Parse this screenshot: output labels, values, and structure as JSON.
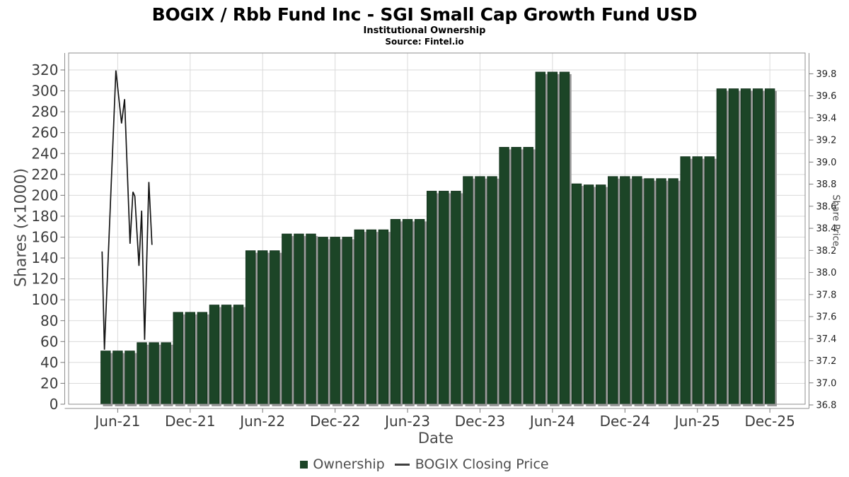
{
  "chart_data": {
    "type": "bar+line",
    "title": "BOGIX / Rbb Fund Inc - SGI Small Cap Growth Fund USD",
    "subtitle": "Institutional Ownership",
    "source": "Source: Fintel.io",
    "background": "#ffffff",
    "grid": true,
    "x_axis": {
      "label": "Date",
      "tick_labels": [
        "Jun-21",
        "Dec-21",
        "Jun-22",
        "Dec-22",
        "Jun-23",
        "Dec-23",
        "Jun-24",
        "Dec-24",
        "Jun-25",
        "Dec-25"
      ],
      "tick_month_indices": [
        1,
        7,
        13,
        19,
        25,
        31,
        37,
        43,
        49,
        55
      ]
    },
    "y_left_axis": {
      "label": "Shares (x1000)",
      "min": 0,
      "max": 320,
      "tick_step": 20,
      "tick_labels": [
        "0",
        "20",
        "40",
        "60",
        "80",
        "100",
        "120",
        "140",
        "160",
        "180",
        "200",
        "220",
        "240",
        "260",
        "280",
        "300",
        "320"
      ]
    },
    "y_right_axis": {
      "label": "Share Price",
      "min": 36.8,
      "max": 39.8,
      "tick_step": 0.2,
      "tick_labels": [
        "36.8",
        "37.0",
        "37.2",
        "37.4",
        "37.6",
        "37.8",
        "38.0",
        "38.2",
        "38.4",
        "38.6",
        "38.8",
        "39.0",
        "39.2",
        "39.4",
        "39.6",
        "39.8"
      ]
    },
    "series": [
      {
        "name": "Ownership",
        "type": "bar",
        "color": "#1c4527",
        "shadow_color": "#9c9c9c",
        "unit": "shares x1000",
        "frequency": "monthly",
        "months": [
          "May-21",
          "Jun-21",
          "Jul-21",
          "Aug-21",
          "Sep-21",
          "Oct-21",
          "Nov-21",
          "Dec-21",
          "Jan-22",
          "Feb-22",
          "Mar-22",
          "Apr-22",
          "May-22",
          "Jun-22",
          "Jul-22",
          "Aug-22",
          "Sep-22",
          "Oct-22",
          "Nov-22",
          "Dec-22",
          "Jan-23",
          "Feb-23",
          "Mar-23",
          "Apr-23",
          "May-23",
          "Jun-23",
          "Jul-23",
          "Aug-23",
          "Sep-23",
          "Oct-23",
          "Nov-23",
          "Dec-23",
          "Jan-24",
          "Feb-24",
          "Mar-24",
          "Apr-24",
          "May-24",
          "Jun-24",
          "Jul-24",
          "Aug-24",
          "Sep-24",
          "Oct-24",
          "Nov-24",
          "Dec-24",
          "Jan-25",
          "Feb-25",
          "Mar-25",
          "Apr-25",
          "May-25",
          "Jun-25",
          "Jul-25",
          "Aug-25",
          "Sep-25",
          "Oct-25",
          "Nov-25",
          "Dec-25"
        ],
        "values": [
          51,
          51,
          51,
          59,
          59,
          59,
          88,
          88,
          88,
          95,
          95,
          95,
          147,
          147,
          147,
          163,
          163,
          163,
          160,
          160,
          160,
          167,
          167,
          167,
          177,
          177,
          177,
          204,
          204,
          204,
          218,
          218,
          218,
          246,
          246,
          246,
          318,
          318,
          318,
          211,
          210,
          210,
          218,
          218,
          218,
          216,
          216,
          216,
          237,
          237,
          237,
          302,
          302,
          302,
          302,
          302
        ]
      },
      {
        "name": "BOGIX Closing Price",
        "type": "line",
        "color": "#141414",
        "axis": "right",
        "points": [
          [
            -0.29,
            38.19
          ],
          [
            -0.1,
            37.3
          ],
          [
            0.85,
            39.83
          ],
          [
            1.32,
            39.35
          ],
          [
            1.57,
            39.57
          ],
          [
            2.02,
            38.26
          ],
          [
            2.26,
            38.73
          ],
          [
            2.42,
            38.69
          ],
          [
            2.76,
            38.06
          ],
          [
            2.98,
            38.56
          ],
          [
            3.23,
            37.39
          ],
          [
            3.58,
            38.82
          ],
          [
            3.84,
            38.25
          ]
        ]
      }
    ],
    "legend": {
      "position": "bottom",
      "items": [
        {
          "label": "Ownership"
        },
        {
          "label": "BOGIX Closing Price"
        }
      ]
    }
  }
}
